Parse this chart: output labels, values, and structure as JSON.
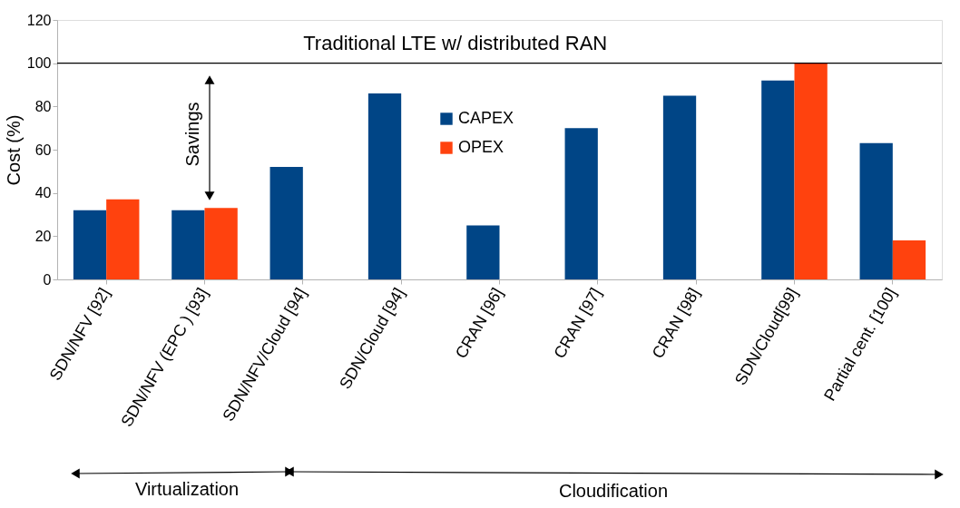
{
  "chart_data": {
    "type": "bar",
    "ylabel": "Cost (%)",
    "categories": [
      "SDN/NFV [92]",
      "SDN/NFV (EPC ) [93]",
      "SDN/NFV/Cloud [94]",
      "SDN/Cloud [94]",
      "CRAN [96]",
      "CRAN [97]",
      "CRAN [98]",
      "SDN/Cloud[99]",
      "Partial cent.  [100]"
    ],
    "series": [
      {
        "name": "CAPEX",
        "color": "#004586",
        "values": [
          32,
          32,
          52,
          86,
          25,
          70,
          85,
          92,
          63
        ]
      },
      {
        "name": "OPEX",
        "color": "#ff420e",
        "values": [
          37,
          33,
          null,
          null,
          null,
          null,
          null,
          100,
          18
        ]
      }
    ],
    "ylim": [
      0,
      120
    ],
    "yticks": [
      0,
      20,
      40,
      60,
      80,
      100,
      120
    ],
    "grid": false,
    "legend": "top",
    "ref_lines": [
      {
        "axis": "y",
        "value": 100,
        "label": "Traditional LTE w/ distributed RAN",
        "color": "#000000"
      }
    ],
    "annotations": [
      "Savings",
      "Virtualization",
      "Cloudification"
    ]
  }
}
